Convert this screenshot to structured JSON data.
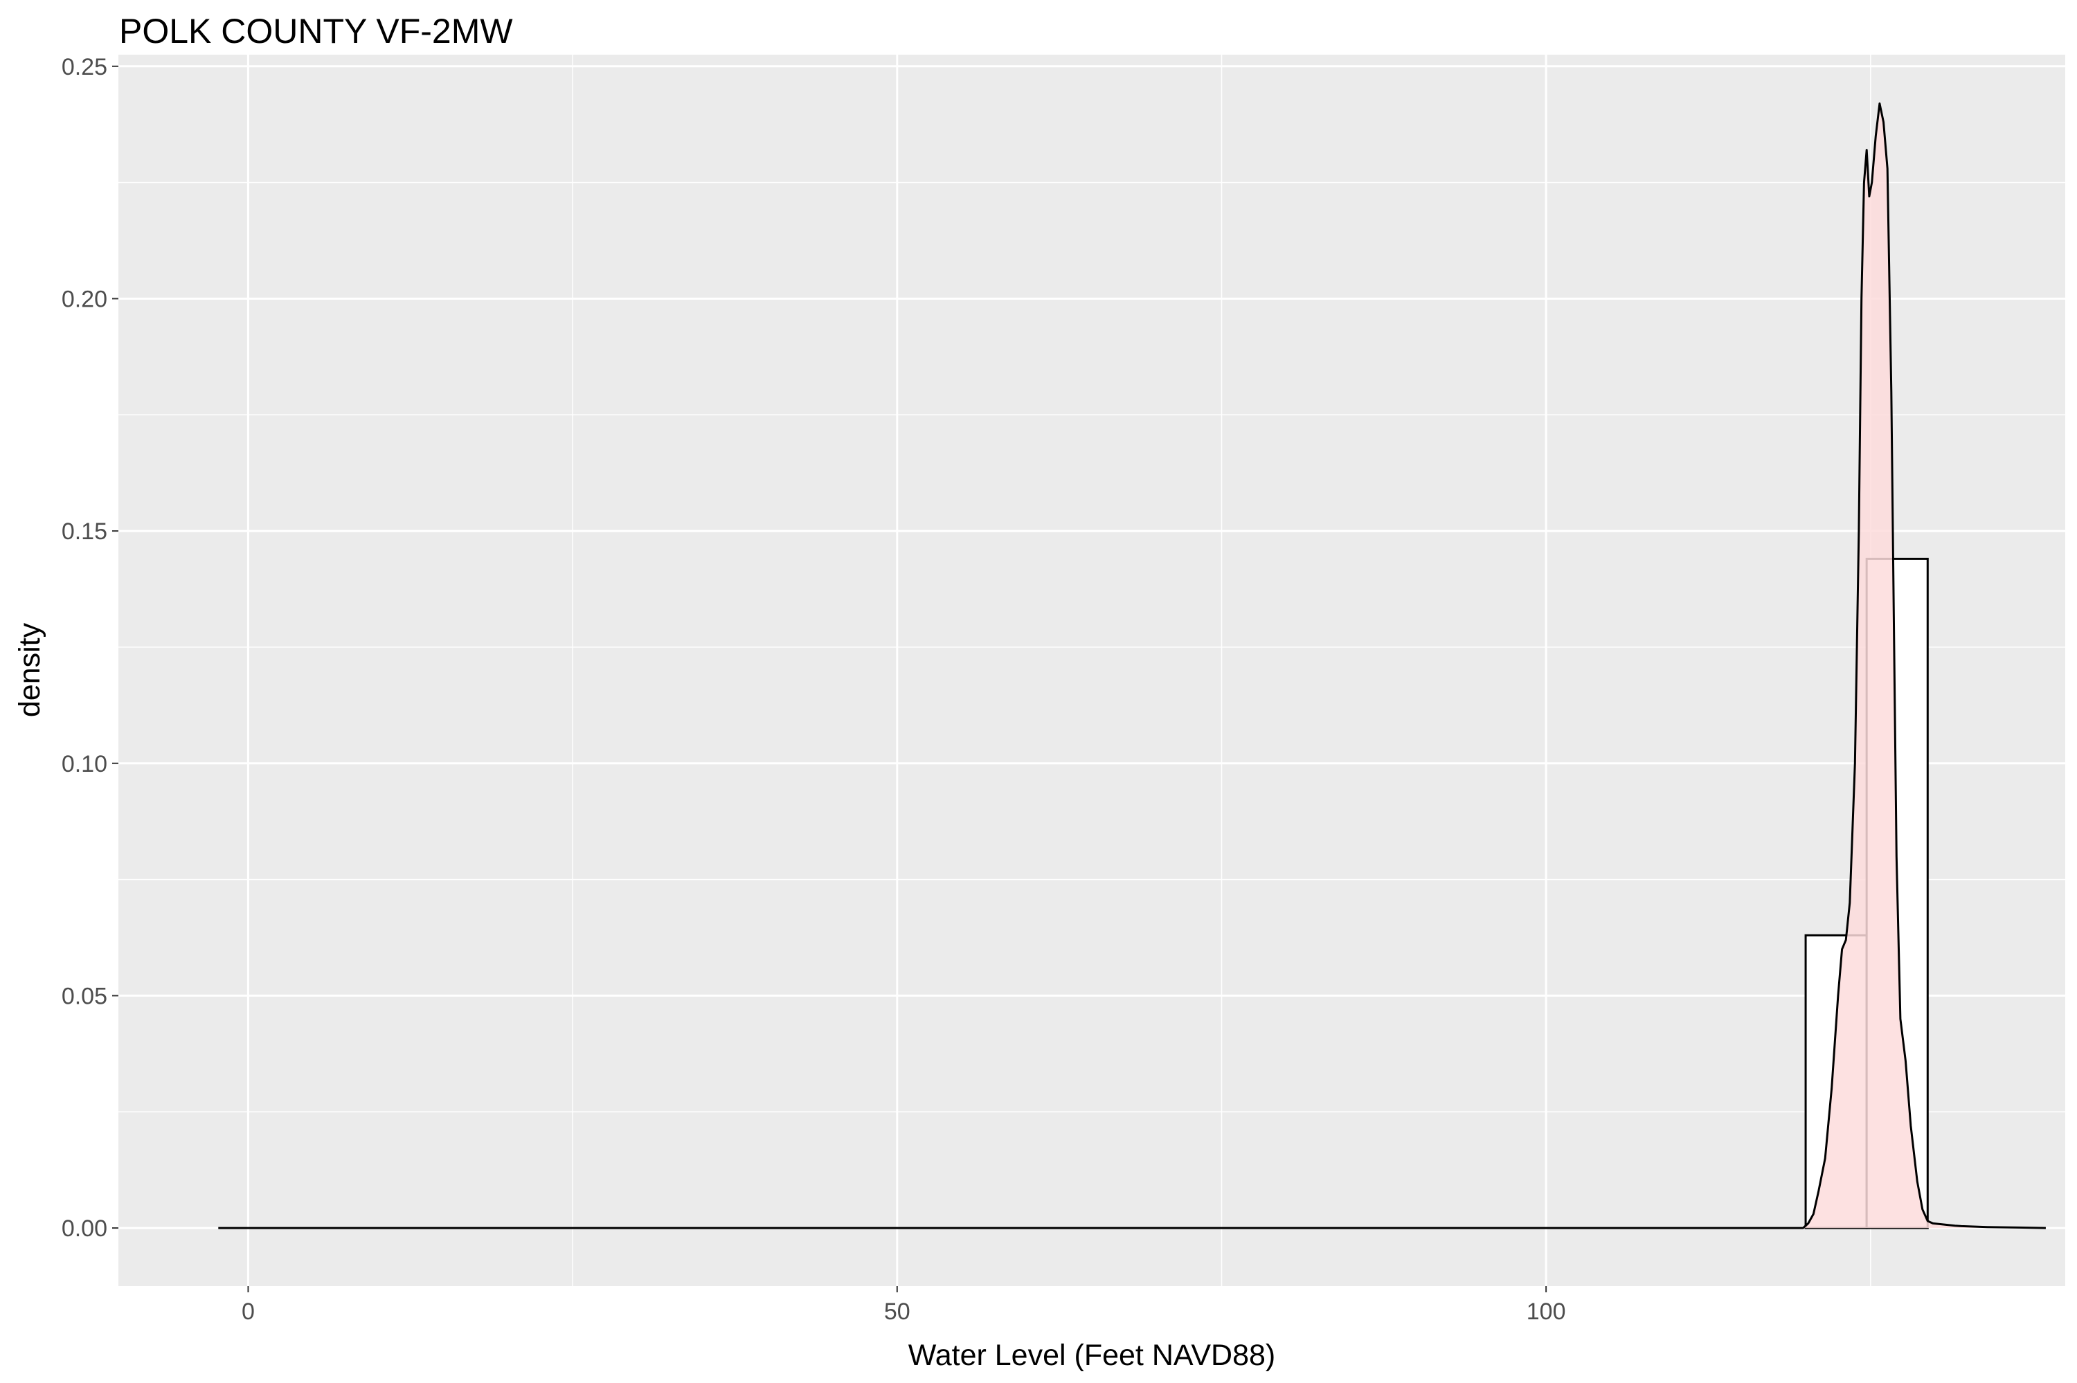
{
  "chart_data": {
    "type": "histogram",
    "title": "POLK COUNTY VF-2MW",
    "xlabel": "Water Level (Feet NAVD88)",
    "ylabel": "density",
    "xlim": [
      -10,
      140
    ],
    "ylim": [
      -0.0125,
      0.2525
    ],
    "x_ticks": [
      0,
      50,
      100
    ],
    "x_tick_labels": [
      "0",
      "50",
      "100"
    ],
    "y_ticks": [
      0,
      0.05,
      0.1,
      0.15,
      0.2,
      0.25
    ],
    "y_tick_labels": [
      "0.00",
      "0.05",
      "0.10",
      "0.15",
      "0.20",
      "0.25"
    ],
    "grid": true,
    "histogram": {
      "bins": [
        {
          "x0": 120,
          "x1": 124.7,
          "density": 0.063
        },
        {
          "x0": 124.7,
          "x1": 129.4,
          "density": 0.144
        }
      ]
    },
    "density": {
      "fill": "#fddcdc",
      "x": [
        -2.3,
        118.5,
        119.8,
        120.2,
        120.6,
        121.0,
        121.5,
        122.0,
        122.5,
        122.8,
        123.1,
        123.4,
        123.8,
        124.1,
        124.3,
        124.5,
        124.7,
        124.9,
        125.1,
        125.4,
        125.7,
        126.0,
        126.3,
        126.6,
        126.8,
        127.0,
        127.3,
        127.7,
        128.1,
        128.6,
        129.0,
        129.4,
        129.8,
        130.5,
        131.5,
        132.0,
        134.0,
        138.5
      ],
      "y": [
        0.0,
        0.0,
        0.0,
        0.001,
        0.003,
        0.008,
        0.015,
        0.03,
        0.05,
        0.06,
        0.062,
        0.07,
        0.1,
        0.15,
        0.2,
        0.225,
        0.232,
        0.222,
        0.225,
        0.235,
        0.242,
        0.238,
        0.228,
        0.18,
        0.13,
        0.08,
        0.045,
        0.036,
        0.022,
        0.01,
        0.004,
        0.0015,
        0.001,
        0.0008,
        0.0005,
        0.0004,
        0.0002,
        0.0
      ]
    }
  }
}
